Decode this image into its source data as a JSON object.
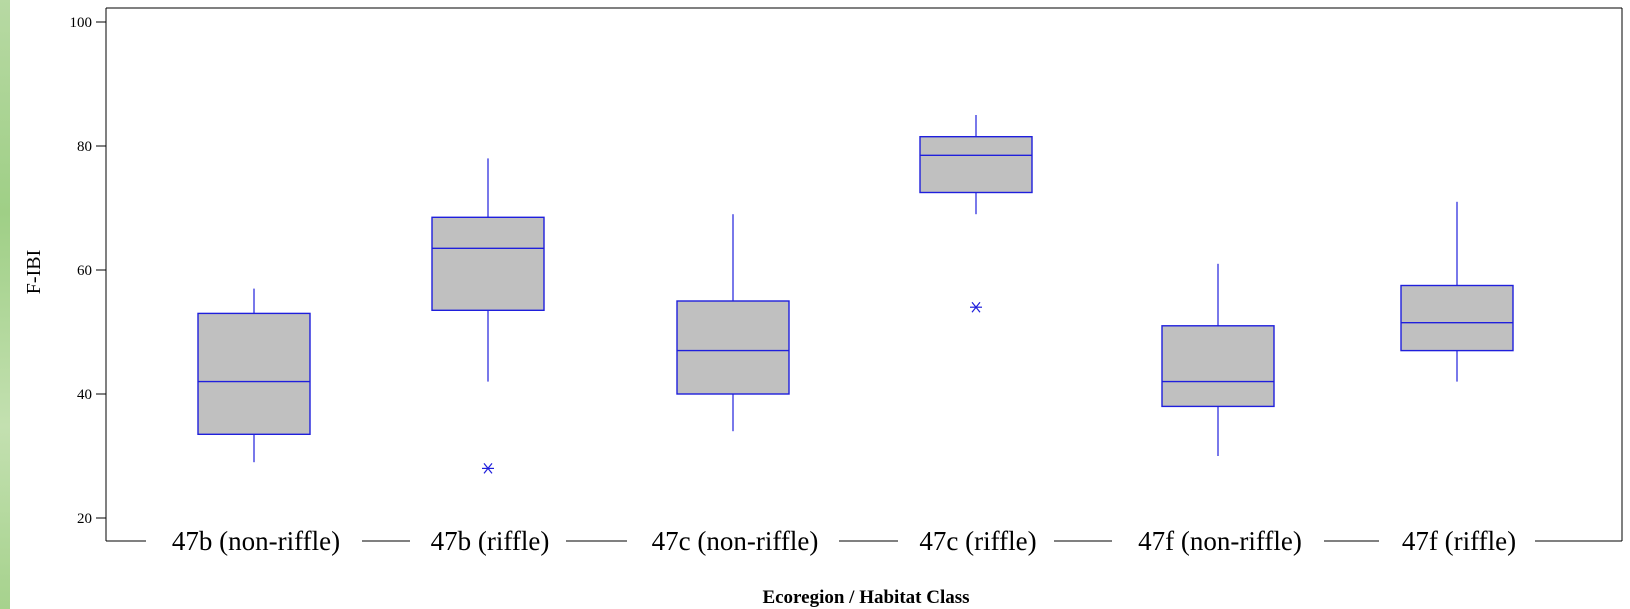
{
  "chart_data": {
    "type": "boxplot",
    "title": "",
    "xlabel": "Ecoregion / Habitat Class",
    "ylabel": "F-IBI",
    "ylim": [
      18,
      102
    ],
    "yticks": [
      20,
      40,
      60,
      80,
      100
    ],
    "grid": false,
    "categories": [
      "47b (non-riffle)",
      "47b (riffle)",
      "47c (non-riffle)",
      "47c (riffle)",
      "47f (non-riffle)",
      "47f (riffle)"
    ],
    "boxes": [
      {
        "whisker_low": 29,
        "q1": 33.5,
        "median": 42,
        "q3": 53,
        "whisker_high": 57,
        "outliers": []
      },
      {
        "whisker_low": 42,
        "q1": 53.5,
        "median": 63.5,
        "q3": 68.5,
        "whisker_high": 78,
        "outliers": [
          28
        ]
      },
      {
        "whisker_low": 34,
        "q1": 40,
        "median": 47,
        "q3": 55,
        "whisker_high": 69,
        "outliers": []
      },
      {
        "whisker_low": 69,
        "q1": 72.5,
        "median": 78.5,
        "q3": 81.5,
        "whisker_high": 85,
        "outliers": [
          54
        ]
      },
      {
        "whisker_low": 30,
        "q1": 38,
        "median": 42,
        "q3": 51,
        "whisker_high": 61,
        "outliers": []
      },
      {
        "whisker_low": 42,
        "q1": 47,
        "median": 51.5,
        "q3": 57.5,
        "whisker_high": 71,
        "outliers": []
      }
    ],
    "colors": {
      "box_fill": "#c0c0c0",
      "box_stroke": "#1f1fdc",
      "axis": "#000000"
    }
  }
}
